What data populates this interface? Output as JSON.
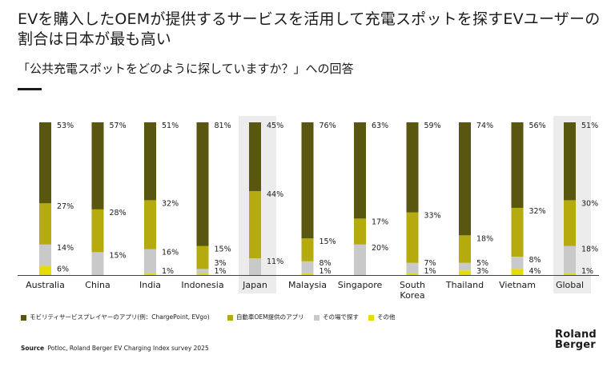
{
  "title": "EVを購入したOEMが提供するサービスを活用して充電スポットを探すEVユーザーの割合は日本が最も高い",
  "subtitle": "「公共充電スポットをどのように探していますか？」への回答",
  "legend": [
    "モビリティサービスプレイヤーのアプリ(例：ChargePoint, EVgo)",
    "自動車OEM提供のアプリ",
    "その場で探す",
    "その他"
  ],
  "source_label": "Source",
  "source_text": "Potloc, Roland Berger EV Charging Index survey 2025",
  "logo": [
    "Roland",
    "Berger"
  ],
  "colors": {
    "mobility": "#59560f",
    "oem": "#b5ab0e",
    "spot": "#c9c9c9",
    "other": "#e6dc00",
    "highlight": "#ececec",
    "text": "#1a1a1a"
  },
  "chart_data": {
    "type": "bar",
    "stacked": true,
    "unit": "%",
    "categories": [
      "Australia",
      "China",
      "India",
      "Indonesia",
      "Japan",
      "Malaysia",
      "Singapore",
      "South Korea",
      "Thailand",
      "Vietnam",
      "Global"
    ],
    "highlighted": [
      "Japan",
      "Global"
    ],
    "series": [
      {
        "name": "モビリティサービスプレイヤーのアプリ(例：ChargePoint, EVgo)",
        "values": [
          53,
          57,
          51,
          81,
          45,
          76,
          63,
          59,
          74,
          56,
          51
        ]
      },
      {
        "name": "自動車OEM提供のアプリ",
        "values": [
          27,
          28,
          32,
          15,
          44,
          15,
          17,
          33,
          18,
          32,
          30
        ]
      },
      {
        "name": "その場で探す",
        "values": [
          14,
          15,
          16,
          3,
          11,
          8,
          20,
          7,
          5,
          8,
          18
        ]
      },
      {
        "name": "その他",
        "values": [
          6,
          0,
          1,
          1,
          0,
          1,
          0,
          1,
          3,
          4,
          1
        ]
      }
    ],
    "value_labels": [
      [
        "53%",
        "27%",
        "14%",
        "6%"
      ],
      [
        "57%",
        "28%",
        "15%",
        ""
      ],
      [
        "51%",
        "32%",
        "16%",
        "1%"
      ],
      [
        "81%",
        "15%",
        "3%",
        "1%"
      ],
      [
        "45%",
        "44%",
        "11%",
        ""
      ],
      [
        "76%",
        "15%",
        "8%",
        "1%"
      ],
      [
        "63%",
        "17%",
        "20%",
        ""
      ],
      [
        "59%",
        "33%",
        "7%",
        "1%"
      ],
      [
        "74%",
        "18%",
        "5%",
        "3%"
      ],
      [
        "56%",
        "32%",
        "8%",
        "4%"
      ],
      [
        "51%",
        "30%",
        "18%",
        "1%"
      ]
    ],
    "ylim": [
      0,
      100
    ]
  }
}
